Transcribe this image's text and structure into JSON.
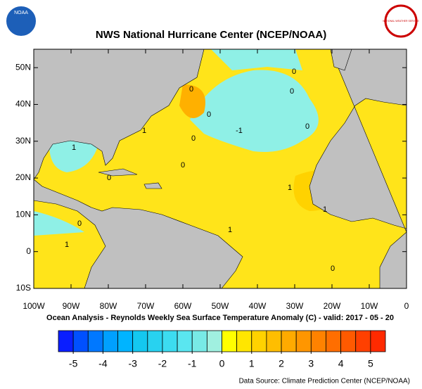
{
  "header": {
    "title": "NWS National Hurricane Center (NCEP/NOAA)",
    "noaa_logo_text": "NOAA",
    "nws_logo_text": "NATIONAL WEATHER SERVICE"
  },
  "map": {
    "lat_ticks": [
      {
        "value": 50,
        "label": "50N"
      },
      {
        "value": 40,
        "label": "40N"
      },
      {
        "value": 30,
        "label": "30N"
      },
      {
        "value": 20,
        "label": "20N"
      },
      {
        "value": 10,
        "label": "10N"
      },
      {
        "value": 0,
        "label": "0"
      },
      {
        "value": -10,
        "label": "10S"
      }
    ],
    "lon_ticks": [
      {
        "value": -100,
        "label": "100W"
      },
      {
        "value": -90,
        "label": "90W"
      },
      {
        "value": -80,
        "label": "80W"
      },
      {
        "value": -70,
        "label": "70W"
      },
      {
        "value": -60,
        "label": "60W"
      },
      {
        "value": -50,
        "label": "50W"
      },
      {
        "value": -40,
        "label": "40W"
      },
      {
        "value": -30,
        "label": "30W"
      },
      {
        "value": -20,
        "label": "20W"
      },
      {
        "value": -10,
        "label": "10W"
      },
      {
        "value": 0,
        "label": "0"
      }
    ],
    "lat_range": [
      -10,
      55
    ],
    "lon_range": [
      -100,
      0
    ],
    "contour_labels": [
      "0",
      "0",
      "0",
      "0",
      "0",
      "0",
      "0",
      "0",
      "1",
      "1",
      "1",
      "1",
      "1",
      "1",
      "-1",
      "0",
      "0"
    ],
    "subtitle": "Ocean Analysis - Reynolds Weekly Sea Surface Temperature Anomaly (C) - valid: 2017 - 05 - 20"
  },
  "colorbar": {
    "range": [
      -5.5,
      5.5
    ],
    "ticks": [
      -5,
      -4,
      -3,
      -2,
      -1,
      0,
      1,
      2,
      3,
      4,
      5
    ],
    "colors": [
      "#0a1eff",
      "#0050ff",
      "#0078ff",
      "#00a0ff",
      "#00b4ff",
      "#14c8f0",
      "#28d2f0",
      "#3cdcf0",
      "#5ae6f0",
      "#78eae6",
      "#a0f0e0",
      "#ffff00",
      "#ffe600",
      "#ffd200",
      "#ffbe00",
      "#ffaa00",
      "#ff9600",
      "#ff8200",
      "#ff6e00",
      "#ff5a00",
      "#ff4000",
      "#ff2a00"
    ]
  },
  "footer": {
    "source": "Data Source: Climate Prediction Center (NCEP/NOAA)"
  }
}
